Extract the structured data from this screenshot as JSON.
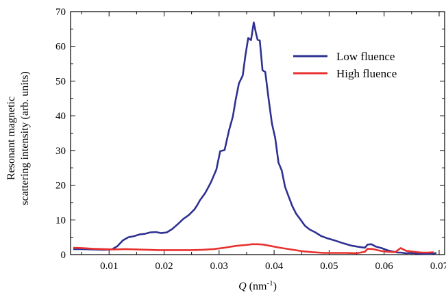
{
  "chart_data": {
    "type": "line",
    "title": "",
    "xlabel_italic": "Q",
    "xlabel_unit_prefix": " (nm",
    "xlabel_unit_sup": "-1",
    "xlabel_unit_suffix": ")",
    "ylabel_line1": "Resonant magnetic",
    "ylabel_line2": "scattering intensity (arb. units)",
    "xlim": [
      0.003,
      0.071
    ],
    "ylim": [
      0,
      70
    ],
    "xticks": [
      0.01,
      0.02,
      0.03,
      0.04,
      0.05,
      0.06,
      0.07
    ],
    "xtick_labels": [
      "0.01",
      "0.02",
      "0.03",
      "0.04",
      "0.05",
      "0.06",
      "0.07"
    ],
    "yticks": [
      0,
      10,
      20,
      30,
      40,
      50,
      60,
      70
    ],
    "ytick_labels": [
      "0",
      "10",
      "20",
      "30",
      "40",
      "50",
      "60",
      "70"
    ],
    "grid": false,
    "legend_position": "top-right",
    "series": [
      {
        "name": "Low fluence",
        "color": "#2e3192",
        "x": [
          0.0035,
          0.005,
          0.007,
          0.009,
          0.0105,
          0.0115,
          0.0125,
          0.0135,
          0.0145,
          0.0155,
          0.0165,
          0.0175,
          0.0185,
          0.0195,
          0.0205,
          0.0215,
          0.0225,
          0.0235,
          0.0245,
          0.0255,
          0.026,
          0.0265,
          0.0275,
          0.0285,
          0.0295,
          0.0302,
          0.031,
          0.0318,
          0.0325,
          0.033,
          0.0336,
          0.0343,
          0.0348,
          0.0353,
          0.0358,
          0.0363,
          0.0367,
          0.037,
          0.0374,
          0.0379,
          0.0384,
          0.039,
          0.0396,
          0.0402,
          0.0408,
          0.0414,
          0.042,
          0.0426,
          0.0433,
          0.044,
          0.0448,
          0.0456,
          0.0465,
          0.0475,
          0.0485,
          0.0495,
          0.051,
          0.0525,
          0.054,
          0.0555,
          0.0565,
          0.057,
          0.0577,
          0.0585,
          0.0595,
          0.0605,
          0.0615,
          0.0625,
          0.063,
          0.064,
          0.065,
          0.066,
          0.0675,
          0.0685,
          0.0695
        ],
        "values": [
          1.6,
          1.6,
          1.5,
          1.4,
          1.5,
          2.4,
          4.1,
          5.0,
          5.3,
          5.8,
          6.0,
          6.4,
          6.5,
          6.2,
          6.4,
          7.4,
          8.8,
          10.3,
          11.4,
          13.0,
          14.2,
          15.6,
          17.8,
          20.8,
          24.5,
          29.8,
          30.1,
          35.7,
          39.8,
          44.5,
          49.3,
          51.6,
          57.5,
          62.4,
          61.8,
          66.9,
          63.8,
          61.9,
          61.7,
          53.1,
          52.6,
          44.8,
          37.8,
          33.6,
          26.5,
          24.2,
          19.5,
          16.9,
          14.0,
          11.8,
          10.1,
          8.3,
          7.2,
          6.4,
          5.4,
          4.8,
          4.1,
          3.3,
          2.6,
          2.2,
          2.0,
          2.9,
          3.0,
          2.3,
          1.9,
          1.3,
          0.9,
          0.6,
          0.6,
          0.4,
          0.5,
          0.3,
          0.2,
          0.2,
          0.5
        ]
      },
      {
        "name": "High fluence",
        "color": "#e8312f",
        "x": [
          0.0035,
          0.005,
          0.007,
          0.009,
          0.011,
          0.013,
          0.015,
          0.017,
          0.019,
          0.021,
          0.023,
          0.025,
          0.027,
          0.029,
          0.031,
          0.033,
          0.035,
          0.036,
          0.037,
          0.038,
          0.039,
          0.041,
          0.043,
          0.045,
          0.047,
          0.049,
          0.051,
          0.053,
          0.055,
          0.0565,
          0.057,
          0.058,
          0.059,
          0.06,
          0.061,
          0.062,
          0.063,
          0.064,
          0.065,
          0.066,
          0.067,
          0.068,
          0.069
        ],
        "values": [
          2.0,
          1.9,
          1.7,
          1.6,
          1.5,
          1.6,
          1.5,
          1.4,
          1.3,
          1.3,
          1.3,
          1.3,
          1.4,
          1.6,
          2.0,
          2.5,
          2.8,
          3.0,
          3.0,
          2.9,
          2.6,
          2.0,
          1.5,
          1.0,
          0.7,
          0.5,
          0.5,
          0.5,
          0.4,
          0.8,
          1.7,
          1.6,
          1.2,
          0.9,
          0.8,
          0.7,
          1.9,
          1.1,
          0.9,
          0.7,
          0.6,
          0.6,
          0.7
        ]
      }
    ]
  }
}
